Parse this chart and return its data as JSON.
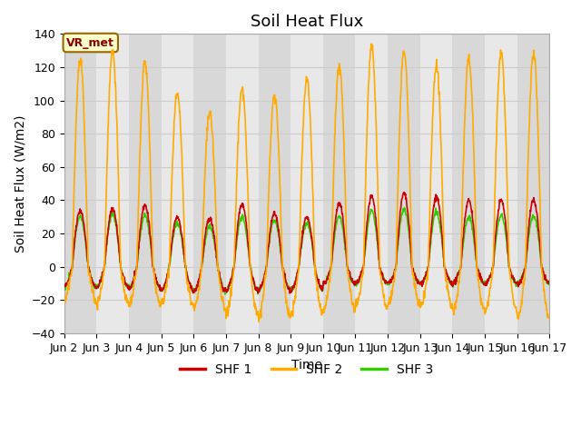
{
  "title": "Soil Heat Flux",
  "xlabel": "Time",
  "ylabel": "Soil Heat Flux (W/m2)",
  "ylim": [
    -40,
    140
  ],
  "xlim": [
    0,
    15
  ],
  "yticks": [
    -40,
    -20,
    0,
    20,
    40,
    60,
    80,
    100,
    120,
    140
  ],
  "xtick_labels": [
    "Jun 2",
    "Jun 3",
    "Jun 4",
    "Jun 5",
    "Jun 6",
    "Jun 7",
    "Jun 8",
    "Jun 9",
    "Jun 10",
    "Jun 11",
    "Jun 12",
    "Jun 13",
    "Jun 14",
    "Jun 15",
    "Jun 16",
    "Jun 17"
  ],
  "xtick_positions": [
    0,
    1,
    2,
    3,
    4,
    5,
    6,
    7,
    8,
    9,
    10,
    11,
    12,
    13,
    14,
    15
  ],
  "shf1_color": "#cc0000",
  "shf2_color": "#ffaa00",
  "shf3_color": "#33cc00",
  "bg_color": "#ffffff",
  "plot_bg_light": "#e8e8e8",
  "plot_bg_dark": "#d8d8d8",
  "grid_color": "#cccccc",
  "label_box_text": "VR_met",
  "label_box_bg": "#ffffcc",
  "label_box_edge": "#996600",
  "legend_labels": [
    "SHF 1",
    "SHF 2",
    "SHF 3"
  ],
  "title_fontsize": 13,
  "axis_label_fontsize": 10,
  "tick_fontsize": 9,
  "line_width": 1.2,
  "shf1_peaks": [
    34,
    35,
    37,
    30,
    29,
    38,
    32,
    30,
    38,
    42,
    44,
    42,
    40,
    40,
    40
  ],
  "shf2_peaks": [
    124,
    130,
    123,
    105,
    93,
    107,
    103,
    113,
    121,
    133,
    130,
    121,
    125,
    128,
    128
  ],
  "shf3_peaks": [
    30,
    32,
    31,
    26,
    24,
    30,
    28,
    26,
    30,
    34,
    35,
    33,
    30,
    31,
    31
  ],
  "shf1_troughs": [
    -12,
    -12,
    -13,
    -14,
    -15,
    -14,
    -14,
    -14,
    -10,
    -10,
    -10,
    -10,
    -10,
    -10,
    -10
  ],
  "shf2_troughs": [
    -20,
    -22,
    -23,
    -22,
    -25,
    -28,
    -30,
    -28,
    -26,
    -24,
    -22,
    -24,
    -26,
    -26,
    -30
  ],
  "shf3_troughs": [
    -12,
    -12,
    -13,
    -14,
    -15,
    -14,
    -14,
    -14,
    -10,
    -10,
    -10,
    -10,
    -10,
    -10,
    -10
  ]
}
